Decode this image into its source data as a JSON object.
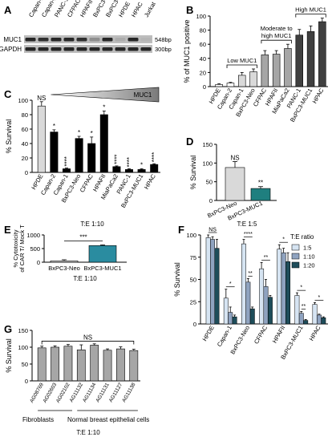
{
  "chart_data": [
    {
      "panel": "A",
      "type": "table",
      "columns": [
        "Capan-1",
        "Capan-2",
        "PANC-1",
        "CFPAC",
        "HPAFII",
        "BxPC3-Neo",
        "BxPC3-MUC1",
        "HPDE",
        "HPAC",
        "Jurkat"
      ],
      "rows": [
        "MUC1",
        "GAPDH"
      ],
      "sizes": [
        "548bp",
        "300bp"
      ],
      "band_intensity": {
        "MUC1": [
          0.85,
          0.8,
          0.85,
          0.85,
          0.8,
          0.3,
          0.85,
          0.15,
          0.85,
          0.1
        ],
        "GAPDH": [
          0.85,
          0.85,
          0.85,
          0.85,
          0.85,
          0.85,
          0.85,
          0.85,
          0.85,
          0.85
        ]
      }
    },
    {
      "panel": "B",
      "type": "bar",
      "ylabel": "% of MUC1 positive",
      "ylim": [
        0,
        100
      ],
      "yticks": [
        0,
        20,
        40,
        60,
        80,
        100
      ],
      "categories": [
        "HPDE",
        "Capan-2",
        "Capan-1",
        "BxPC3-Neo",
        "CFPAC",
        "HPAFII",
        "MiaPaCa2",
        "PANC-1",
        "BxPC3-MUC1",
        "HPAC"
      ],
      "values": [
        3,
        5,
        16,
        21,
        45,
        46,
        54,
        73,
        78,
        92
      ],
      "errors": [
        1,
        1,
        4,
        4,
        6,
        5,
        6,
        8,
        8,
        5
      ],
      "bar_colors": [
        "#ffffff",
        "#ffffff",
        "#d9d9d9",
        "#d9d9d9",
        "#a6a6a6",
        "#a6a6a6",
        "#a6a6a6",
        "#404040",
        "#404040",
        "#404040"
      ],
      "groups": [
        {
          "label": "Low MUC1",
          "from": 1,
          "to": 3
        },
        {
          "label": "Moderate to",
          "label2": "high MUC1",
          "from": 4,
          "to": 6
        },
        {
          "label": "High MUC1",
          "from": 7,
          "to": 9
        }
      ]
    },
    {
      "panel": "C",
      "type": "bar",
      "ylabel": "% Survival",
      "ylim": [
        0,
        100
      ],
      "yticks": [
        0,
        20,
        40,
        60,
        80,
        100
      ],
      "categories": [
        "HPDE",
        "Capan-2",
        "Capan-1",
        "BxPC3-Neo",
        "CFPAC",
        "HPAFII",
        "MiaPaCa2",
        "PANC-1",
        "BxPC3-MUC1",
        "HPAC"
      ],
      "values": [
        92,
        56,
        5,
        47,
        40,
        80,
        8,
        4,
        4,
        11
      ],
      "errors": [
        6,
        3,
        1,
        3,
        9,
        5,
        1,
        1,
        1,
        1
      ],
      "bar_colors": [
        "#d9d9d9",
        "#000000",
        "#000000",
        "#000000",
        "#000000",
        "#000000",
        "#000000",
        "#000000",
        "#000000",
        "#000000"
      ],
      "significance": [
        "NS",
        "*",
        "****",
        "*",
        "*",
        "*",
        "****",
        "****",
        "*",
        "****"
      ],
      "gradient_label": "MUC1",
      "footer": "T:E 1:10"
    },
    {
      "panel": "D",
      "type": "bar",
      "ylabel": "% Survival",
      "ylim": [
        0,
        150
      ],
      "yticks": [
        0,
        50,
        100,
        150
      ],
      "categories": [
        "BxPC3-Neo",
        "BxPC3-MUC1"
      ],
      "values": [
        88,
        32
      ],
      "errors": [
        16,
        5
      ],
      "bar_colors": [
        "#d9d9d9",
        "#1f7f7f"
      ],
      "significance": [
        "NS",
        "**"
      ],
      "footer": "T:E 1:5"
    },
    {
      "panel": "E",
      "type": "bar",
      "ylabel": "% Cytotoxicity",
      "ylabel2": "of CAR T/ Mock T",
      "ylim": [
        0,
        1000
      ],
      "yticks": [
        0,
        500,
        1000
      ],
      "categories": [
        "BxPC3-Neo",
        "BxPC3-MUC1"
      ],
      "values": [
        50,
        610
      ],
      "errors": [
        40,
        25
      ],
      "bar_colors": [
        "#d9d9d9",
        "#2a8ca0"
      ],
      "significance_bracket": "***",
      "footer": "T:E 1:10"
    },
    {
      "panel": "F",
      "type": "bar",
      "ylabel": "% Survival",
      "ylim": [
        0,
        100
      ],
      "yticks": [
        0,
        25,
        50,
        75,
        100
      ],
      "categories": [
        "HPDE",
        "Capan-1",
        "BxPC3-Neo",
        "CFPAC",
        "HPAFII",
        "BxPC3-MUC1",
        "HPAC"
      ],
      "series": [
        {
          "name": "1:5",
          "color": "#d6e4f2",
          "values": [
            97,
            29,
            90,
            62,
            84,
            32,
            22
          ],
          "errors": [
            3,
            10,
            5,
            7,
            5,
            3,
            2
          ]
        },
        {
          "name": "1:10",
          "color": "#8fa3c0",
          "values": [
            95,
            13,
            47,
            42,
            80,
            12,
            10
          ],
          "errors": [
            3,
            6,
            4,
            8,
            5,
            2,
            1
          ]
        },
        {
          "name": "1:20",
          "color": "#1e4d5a",
          "values": [
            85,
            8,
            17,
            30,
            70,
            4,
            7
          ],
          "errors": [
            10,
            2,
            2,
            2,
            10,
            1,
            1
          ]
        }
      ],
      "legend_title": "T:E ratio",
      "legend_position": "top-right",
      "significance": [
        "NS",
        "*",
        "****",
        "**",
        "*",
        "*",
        "*"
      ],
      "significance_inner": [
        "",
        "",
        "**",
        "",
        "",
        "**",
        ""
      ]
    },
    {
      "panel": "G",
      "type": "bar",
      "ylabel": "% Survival",
      "ylim": [
        0,
        150
      ],
      "yticks": [
        0,
        50,
        100,
        150
      ],
      "categories": [
        "AG08769",
        "AG02603",
        "AG02102",
        "AG11132",
        "AG11134",
        "AG11131",
        "AG11127",
        "AG11138"
      ],
      "values": [
        98,
        100,
        103,
        92,
        106,
        91,
        95,
        90
      ],
      "errors": [
        5,
        4,
        5,
        15,
        4,
        4,
        6,
        4
      ],
      "bar_colors": [
        "#a6a6a6",
        "#a6a6a6",
        "#a6a6a6",
        "#a6a6a6",
        "#a6a6a6",
        "#a6a6a6",
        "#a6a6a6",
        "#a6a6a6"
      ],
      "significance_bracket": "NS",
      "groups": [
        {
          "label": "Fibroblasts",
          "from": 0,
          "to": 2
        },
        {
          "label": "Normal breast epithelial cells",
          "from": 3,
          "to": 7
        }
      ],
      "footer": "T:E 1:10"
    }
  ]
}
